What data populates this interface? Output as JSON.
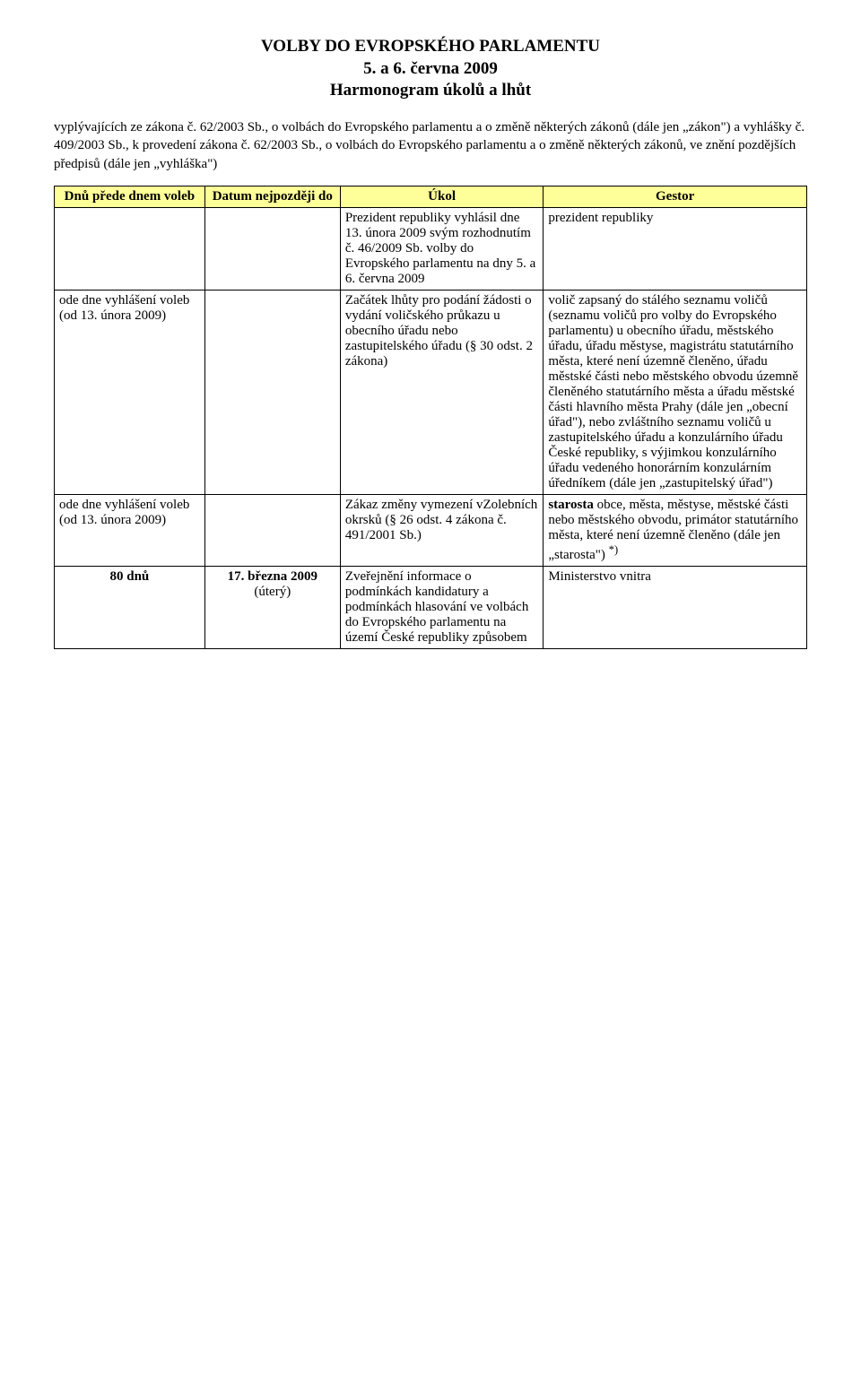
{
  "colors": {
    "header_bg": "#ffff99",
    "page_bg": "#ffffff",
    "text": "#000000",
    "border": "#000000"
  },
  "title": {
    "line1": "VOLBY DO EVROPSKÉHO PARLAMENTU",
    "line2": "5. a 6. června 2009",
    "line3": "Harmonogram úkolů a lhůt"
  },
  "intro": "vyplývajících ze zákona č. 62/2003 Sb., o volbách do Evropského parlamentu a o změně některých zákonů (dále jen „zákon\") a vyhlášky č. 409/2003 Sb., k provedení zákona č. 62/2003 Sb., o volbách do Evropského parlamentu a o změně některých zákonů, ve znění pozdějších předpisů (dále jen „vyhláška\")",
  "headers": {
    "col1": "Dnů přede dnem voleb",
    "col2": "Datum nejpozději do",
    "col3": "Úkol",
    "col4": "Gestor"
  },
  "rows": [
    {
      "c1": "",
      "c2": "",
      "c3": "Prezident republiky vyhlásil dne 13. února 2009 svým rozhodnutím č. 46/2009 Sb. volby do Evropského parlamentu na dny 5. a 6. června 2009",
      "c4": "prezident republiky"
    },
    {
      "c1": "ode dne vyhlášení voleb\n(od 13. února 2009)",
      "c2": "",
      "c3": "Začátek lhůty pro podání žádosti o  vydání voličského průkazu u obecního úřadu nebo zastupitelského úřadu (§ 30 odst. 2 zákona)",
      "c4": "volič zapsaný do stálého seznamu voličů (seznamu voličů pro volby do Evropského parlamentu) u obecního úřadu, městského úřadu, úřadu městyse, magistrátu statutárního města, které není územně členěno, úřadu městské části  nebo městského obvodu územně členěného statutárního města a úřadu městské části hlavního města Prahy (dále jen „obecní úřad\"), nebo zvláštního seznamu voličů u zastupitelského úřadu a konzulárního úřadu České republiky, s výjimkou konzulárního úřadu vedeného honorárním konzulárním úředníkem (dále jen „zastupitelský úřad\")"
    },
    {
      "c1": "ode dne vyhlášení voleb\n(od 13. února 2009)",
      "c2": "",
      "c3": "Zákaz změny vymezení vZolebních okrsků (§ 26 odst. 4 zákona č. 491/2001 Sb.)",
      "c4_html": "<b>starosta</b> obce, města, městyse, městské části nebo městského obvodu, primátor statutárního města, které není územně členěno (dále jen „starosta\") <sup>*)</sup>"
    },
    {
      "c1_html": "<b>80 dnů</b>",
      "c1_center": true,
      "c2_html": "<b>17. března 2009</b><br>(úterý)",
      "c2_center": true,
      "c3": "Zveřejnění informace o podmínkách kandidatury a podmínkách hlasování ve volbách do Evropského parlamentu na území České republiky způsobem",
      "c4": "Ministerstvo vnitra"
    }
  ]
}
